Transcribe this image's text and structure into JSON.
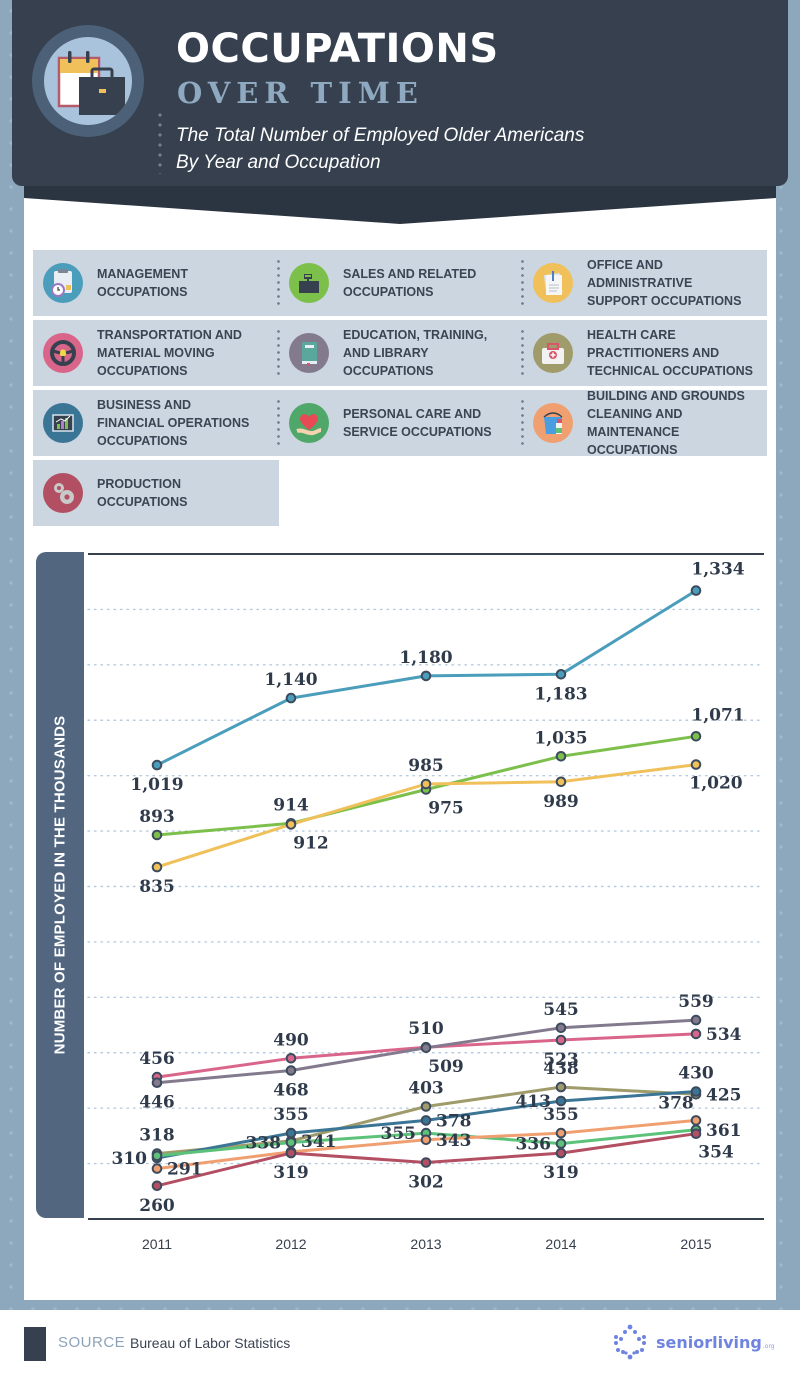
{
  "header": {
    "title_main": "OCCUPATIONS",
    "title_sub": "OVER TIME",
    "subtitle_line1": "The Total Number of Employed Older Americans",
    "subtitle_line2": "By Year and Occupation",
    "logo_icon": "calendar-briefcase-icon"
  },
  "legend": [
    {
      "label": "MANAGEMENT\nOCCUPATIONS",
      "icon": "clipboard-clock-icon",
      "color": "#4a9ebb"
    },
    {
      "label": "SALES AND RELATED\nOCCUPATIONS",
      "icon": "cash-register-icon",
      "color": "#7cc04b"
    },
    {
      "label": "OFFICE AND\nADMINISTRATIVE\nSUPPORT OCCUPATIONS",
      "icon": "paper-clip-notes-icon",
      "color": "#f0c05a"
    },
    {
      "label": "TRANSPORTATION AND\nMATERIAL MOVING\nOCCUPATIONS",
      "icon": "steering-wheel-icon",
      "color": "#d9668a"
    },
    {
      "label": "EDUCATION, TRAINING,\nAND LIBRARY\nOCCUPATIONS",
      "icon": "book-icon",
      "color": "#837a8e"
    },
    {
      "label": "HEALTH CARE\nPRACTITIONERS AND\nTECHNICAL OCCUPATIONS",
      "icon": "first-aid-kit-icon",
      "color": "#a09b6a"
    },
    {
      "label": "BUSINESS AND\nFINANCIAL OPERATIONS\nOCCUPATIONS",
      "icon": "bar-chart-board-icon",
      "color": "#3b7596"
    },
    {
      "label": "PERSONAL CARE AND\nSERVICE OCCUPATIONS",
      "icon": "heart-hand-icon",
      "color": "#5cc27a"
    },
    {
      "label": "BUILDING AND GROUNDS\nCLEANING AND\nMAINTENANCE OCCUPATIONS",
      "icon": "bucket-spray-icon",
      "color": "#f0a070"
    },
    {
      "label": "PRODUCTION\nOCCUPATIONS",
      "icon": "gears-icon",
      "color": "#b34f63"
    }
  ],
  "chart_data": {
    "type": "line",
    "title": "Occupations Over Time",
    "xlabel": "",
    "ylabel": "NUMBER OF EMPLOYED IN THE THOUSANDS",
    "x": [
      "2011",
      "2012",
      "2013",
      "2014",
      "2015"
    ],
    "ylim": [
      200,
      1400
    ],
    "yticks": [
      300,
      400,
      500,
      600,
      700,
      800,
      900,
      1000,
      1100,
      1200,
      1300
    ],
    "grid": true,
    "legend": "top",
    "series": [
      {
        "name": "Management Occupations",
        "color": "#4a9ebb",
        "values": [
          1019,
          1140,
          1180,
          1183,
          1334
        ],
        "labels": [
          "1,019",
          "1,140",
          "1,180",
          "1,183",
          "1,334"
        ],
        "label_pos": [
          "below",
          "above",
          "above",
          "below",
          "above-right"
        ]
      },
      {
        "name": "Sales and Related Occupations",
        "color": "#7cc04b",
        "values": [
          893,
          914,
          975,
          1035,
          1071
        ],
        "labels": [
          "893",
          "914",
          "975",
          "1,035",
          "1,071"
        ],
        "label_pos": [
          "above",
          "above",
          "below-right",
          "above",
          "above-right"
        ]
      },
      {
        "name": "Office and Administrative Support Occupations",
        "color": "#f0c05a",
        "values": [
          835,
          912,
          985,
          989,
          1020
        ],
        "labels": [
          "835",
          "912",
          "985",
          "989",
          "1,020"
        ],
        "label_pos": [
          "below",
          "below-right",
          "above",
          "below",
          "below-right"
        ]
      },
      {
        "name": "Transportation and Material Moving Occupations",
        "color": "#d9668a",
        "values": [
          456,
          490,
          510,
          523,
          534
        ],
        "labels": [
          "456",
          "490",
          "510",
          "523",
          "534"
        ],
        "label_pos": [
          "above",
          "above",
          "above",
          "below",
          "right"
        ]
      },
      {
        "name": "Education, Training, and Library Occupations",
        "color": "#837a8e",
        "values": [
          446,
          468,
          509,
          545,
          559
        ],
        "labels": [
          "446",
          "468",
          "509",
          "545",
          "559"
        ],
        "label_pos": [
          "below",
          "below",
          "below-right",
          "above",
          "above"
        ]
      },
      {
        "name": "Health Care Practitioners and Technical Occupations",
        "color": "#a09b6a",
        "values": [
          318,
          341,
          403,
          438,
          425
        ],
        "labels": [
          "318",
          "341",
          "403",
          "438",
          "425"
        ],
        "label_pos": [
          "above",
          "right",
          "above",
          "above",
          "right"
        ]
      },
      {
        "name": "Business and Financial Operations Occupations",
        "color": "#3b7596",
        "values": [
          310,
          355,
          378,
          413,
          430
        ],
        "labels": [
          "310",
          "355",
          "378",
          "413",
          "430"
        ],
        "label_pos": [
          "left",
          "above",
          "right",
          "left",
          "above"
        ]
      },
      {
        "name": "Personal Care and Service Occupations",
        "color": "#5cc27a",
        "values": [
          314,
          338,
          355,
          336,
          361
        ],
        "labels": [
          "",
          "338",
          "355",
          "336",
          "361"
        ],
        "label_pos": [
          "none",
          "left",
          "left",
          "left",
          "right"
        ]
      },
      {
        "name": "Building and Grounds Cleaning and Maintenance Occupations",
        "color": "#f0a070",
        "values": [
          291,
          321,
          343,
          355,
          378
        ],
        "labels": [
          "291",
          "",
          "343",
          "355",
          "378"
        ],
        "label_pos": [
          "right",
          "none",
          "right",
          "above",
          "above-left"
        ]
      },
      {
        "name": "Production Occupations",
        "color": "#b34f63",
        "values": [
          260,
          319,
          302,
          319,
          354
        ],
        "labels": [
          "260",
          "319",
          "302",
          "319",
          "354"
        ],
        "label_pos": [
          "below",
          "below",
          "below",
          "below",
          "below-right"
        ]
      }
    ]
  },
  "footer": {
    "source_label": "SOURCE",
    "source_text": "Bureau of Labor Statistics",
    "brand_name": "seniorliving",
    "brand_tld": ".org"
  }
}
